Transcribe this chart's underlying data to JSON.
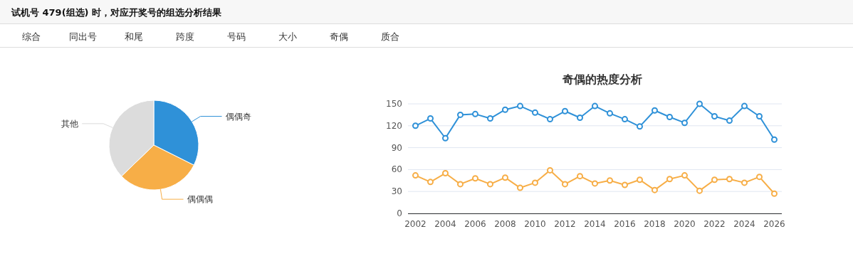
{
  "chart_data": [
    {
      "type": "other",
      "title": "试机号 479(组选) 时，对应开奖号的组选分析结果",
      "annotations": [
        "综合",
        "同出号",
        "和尾",
        "跨度",
        "号码",
        "大小",
        "奇偶",
        "质合"
      ]
    },
    {
      "type": "pie",
      "categories": [
        "偶偶奇",
        "偶偶偶",
        "其他"
      ],
      "values": [
        32.4,
        30.4,
        37.2
      ],
      "colors": [
        "#2f91d8",
        "#f7ae47",
        "#dcdcdc"
      ]
    },
    {
      "type": "line",
      "title": "奇偶的热度分析",
      "x": [
        2002,
        2003,
        2004,
        2005,
        2006,
        2007,
        2008,
        2009,
        2010,
        2011,
        2012,
        2013,
        2014,
        2015,
        2016,
        2017,
        2018,
        2019,
        2020,
        2021,
        2022,
        2023,
        2024,
        2025,
        2026
      ],
      "series": [
        {
          "color": "#2f91d8",
          "values": [
            120,
            130,
            103,
            135,
            136,
            130,
            142,
            147,
            138,
            129,
            140,
            131,
            147,
            137,
            129,
            119,
            141,
            132,
            124,
            150,
            133,
            127,
            147,
            133,
            101
          ]
        },
        {
          "color": "#f7ae47",
          "values": [
            52,
            43,
            55,
            40,
            48,
            40,
            49,
            35,
            42,
            59,
            40,
            51,
            41,
            45,
            39,
            46,
            32,
            47,
            52,
            31,
            46,
            47,
            42,
            50,
            27
          ]
        }
      ],
      "xlim": [
        2001.5,
        2026.5
      ],
      "xticks": [
        2002,
        2004,
        2006,
        2008,
        2010,
        2012,
        2014,
        2016,
        2018,
        2020,
        2022,
        2024,
        2026
      ],
      "ylim": [
        0,
        150
      ],
      "yticks": [
        0,
        30,
        60,
        90,
        120,
        150
      ],
      "grid": "y",
      "marker": "circle",
      "line_style": "solid"
    }
  ]
}
